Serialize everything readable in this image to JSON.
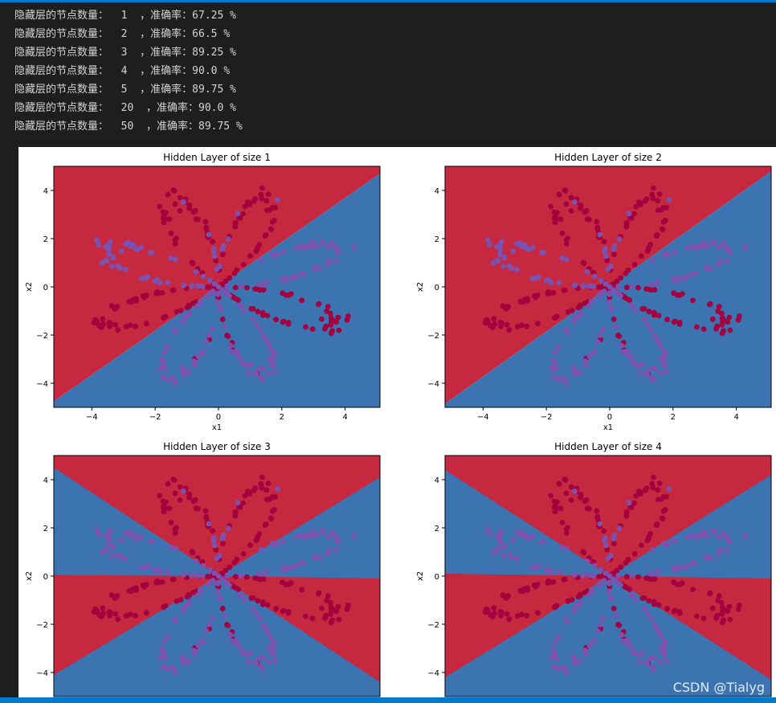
{
  "log": {
    "lines": [
      {
        "prefix": "隐藏层的节点数量：",
        "size": "1",
        "acc_label": "，准确率：",
        "acc": "67.25",
        "unit": "%"
      },
      {
        "prefix": "隐藏层的节点数量：",
        "size": "2",
        "acc_label": "，准确率：",
        "acc": "66.5",
        "unit": "%"
      },
      {
        "prefix": "隐藏层的节点数量：",
        "size": "3",
        "acc_label": "，准确率：",
        "acc": "89.25",
        "unit": "%"
      },
      {
        "prefix": "隐藏层的节点数量：",
        "size": "4",
        "acc_label": "，准确率：",
        "acc": "90.0",
        "unit": "%"
      },
      {
        "prefix": "隐藏层的节点数量：",
        "size": "5",
        "acc_label": "，准确率：",
        "acc": "89.75",
        "unit": "%"
      },
      {
        "prefix": "隐藏层的节点数量：",
        "size": "20",
        "acc_label": "，准确率：",
        "acc": "90.0",
        "unit": "%"
      },
      {
        "prefix": "隐藏层的节点数量：",
        "size": "50",
        "acc_label": "，准确率：",
        "acc": "89.75",
        "unit": "%"
      }
    ]
  },
  "watermark": "CSDN @Tialyg",
  "colors": {
    "region_red": "#c5283f",
    "region_blue": "#3c74b1",
    "point_red": "#a3023e",
    "point_blue": "#7b52b0"
  },
  "chart_data": [
    {
      "type": "scatter",
      "title": "Hidden Layer of size 1",
      "xlabel": "x1",
      "ylabel": "x2",
      "xlim": [
        -5.2,
        5.1
      ],
      "ylim": [
        -5.0,
        5.0
      ],
      "xticks": [
        "−4",
        "−2",
        "0",
        "2",
        "4"
      ],
      "yticks": [
        "4",
        "2",
        "0",
        "−2",
        "−4"
      ],
      "regions": [
        {
          "color": "red",
          "polygon": [
            [
              -5.2,
              -4.75
            ],
            [
              5.1,
              4.7
            ],
            [
              5.1,
              5.0
            ],
            [
              -5.2,
              5.0
            ]
          ]
        },
        {
          "color": "blue",
          "polygon": [
            [
              -5.2,
              -4.75
            ],
            [
              5.1,
              4.7
            ],
            [
              5.1,
              -5.0
            ],
            [
              -5.2,
              -5.0
            ]
          ]
        }
      ]
    },
    {
      "type": "scatter",
      "title": "Hidden Layer of size 2",
      "xlabel": "x1",
      "ylabel": "x2",
      "xlim": [
        -5.2,
        5.1
      ],
      "ylim": [
        -5.0,
        5.0
      ],
      "xticks": [
        "−4",
        "−2",
        "0",
        "2",
        "4"
      ],
      "yticks": [
        "4",
        "2",
        "0",
        "−2",
        "−4"
      ],
      "regions": [
        {
          "color": "red",
          "polygon": [
            [
              -5.2,
              -4.85
            ],
            [
              5.1,
              4.8
            ],
            [
              5.1,
              5.0
            ],
            [
              -5.2,
              5.0
            ]
          ]
        },
        {
          "color": "blue",
          "polygon": [
            [
              -5.2,
              -4.85
            ],
            [
              5.1,
              4.8
            ],
            [
              5.1,
              -5.0
            ],
            [
              -5.2,
              -5.0
            ]
          ]
        }
      ]
    },
    {
      "type": "scatter",
      "title": "Hidden Layer of size 3",
      "xlabel": "",
      "ylabel": "x2",
      "xlim": [
        -5.2,
        5.1
      ],
      "ylim": [
        -5.0,
        5.0
      ],
      "xticks": [],
      "yticks": [
        "4",
        "2",
        "0",
        "−2",
        "−4"
      ],
      "regions": [
        {
          "color": "blue",
          "polygon": [
            [
              -5.2,
              -5.0
            ],
            [
              5.1,
              -5.0
            ],
            [
              5.1,
              5.0
            ],
            [
              -5.2,
              5.0
            ]
          ]
        },
        {
          "color": "red",
          "polygon": [
            [
              -5.2,
              5.0
            ],
            [
              5.1,
              5.0
            ],
            [
              5.1,
              4.1
            ],
            [
              0,
              0
            ],
            [
              -5.2,
              4.5
            ]
          ]
        },
        {
          "color": "red",
          "polygon": [
            [
              -5.2,
              0.05
            ],
            [
              0,
              0
            ],
            [
              5.1,
              -4.4
            ],
            [
              5.1,
              -0.1
            ],
            [
              0,
              0
            ],
            [
              -5.2,
              -4.1
            ]
          ]
        }
      ]
    },
    {
      "type": "scatter",
      "title": "Hidden Layer of size 4",
      "xlabel": "",
      "ylabel": "x2",
      "xlim": [
        -5.2,
        5.1
      ],
      "ylim": [
        -5.0,
        5.0
      ],
      "xticks": [],
      "yticks": [
        "4",
        "2",
        "0",
        "−2",
        "−4"
      ],
      "regions": [
        {
          "color": "blue",
          "polygon": [
            [
              -5.2,
              -5.0
            ],
            [
              5.1,
              -5.0
            ],
            [
              5.1,
              5.0
            ],
            [
              -5.2,
              5.0
            ]
          ]
        },
        {
          "color": "red",
          "polygon": [
            [
              -5.2,
              5.0
            ],
            [
              5.1,
              5.0
            ],
            [
              5.1,
              4.2
            ],
            [
              0,
              0
            ],
            [
              -5.2,
              4.4
            ]
          ]
        },
        {
          "color": "red",
          "polygon": [
            [
              -5.2,
              0.1
            ],
            [
              0,
              0
            ],
            [
              5.1,
              -4.3
            ],
            [
              5.1,
              -0.1
            ],
            [
              0,
              0
            ],
            [
              -5.2,
              -4.2
            ]
          ]
        }
      ]
    }
  ]
}
